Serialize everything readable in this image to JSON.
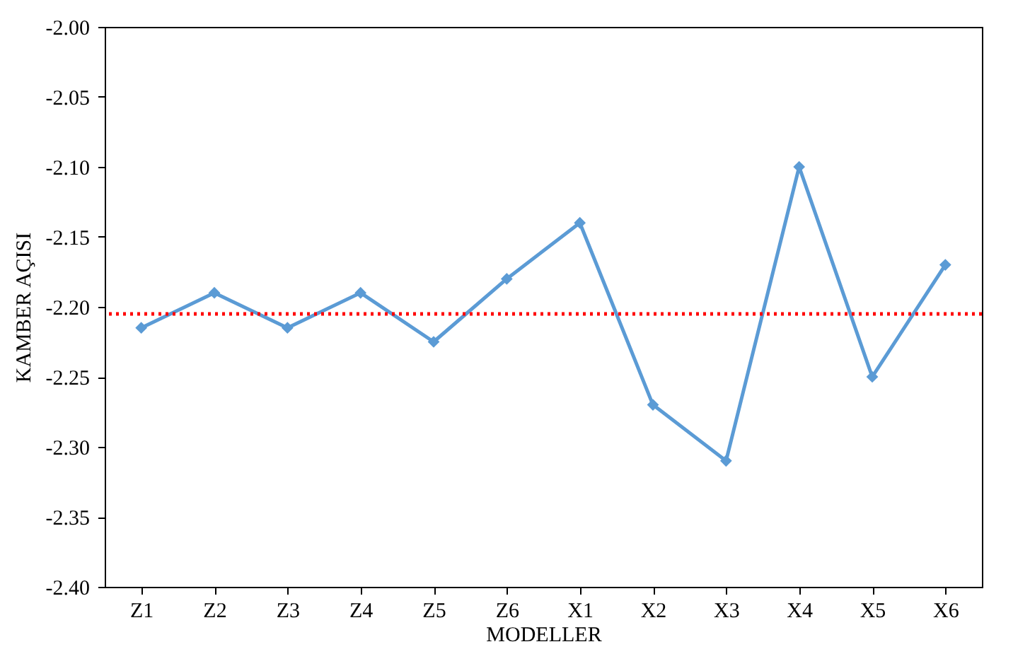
{
  "chart_data": {
    "type": "line",
    "xlabel": "MODELLER",
    "ylabel": "KAMBER AÇISI",
    "categories": [
      "Z1",
      "Z2",
      "Z3",
      "Z4",
      "Z5",
      "Z6",
      "X1",
      "X2",
      "X3",
      "X4",
      "X5",
      "X6"
    ],
    "series": [
      {
        "color": "#5b9bd5",
        "values": [
          -2.215,
          -2.19,
          -2.215,
          -2.19,
          -2.225,
          -2.18,
          -2.14,
          -2.27,
          -2.31,
          -2.1,
          -2.25,
          -2.17
        ]
      }
    ],
    "ylim": [
      -2.4,
      -2.0
    ],
    "yticks": [
      {
        "value": -2.4,
        "label": "-2.40"
      },
      {
        "value": -2.35,
        "label": "-2.35"
      },
      {
        "value": -2.3,
        "label": "-2.30"
      },
      {
        "value": -2.25,
        "label": "-2.25"
      },
      {
        "value": -2.2,
        "label": "-2.20"
      },
      {
        "value": -2.15,
        "label": "-2.15"
      },
      {
        "value": -2.1,
        "label": "-2.10"
      },
      {
        "value": -2.05,
        "label": "-2.05"
      },
      {
        "value": -2.0,
        "label": "-2.00"
      }
    ],
    "ref_lines": [
      {
        "axis": "y",
        "value": -2.205,
        "color": "#ff0000",
        "line_style": "dotted"
      }
    ],
    "marker": "diamond",
    "line_style": "solid",
    "grid": false
  }
}
